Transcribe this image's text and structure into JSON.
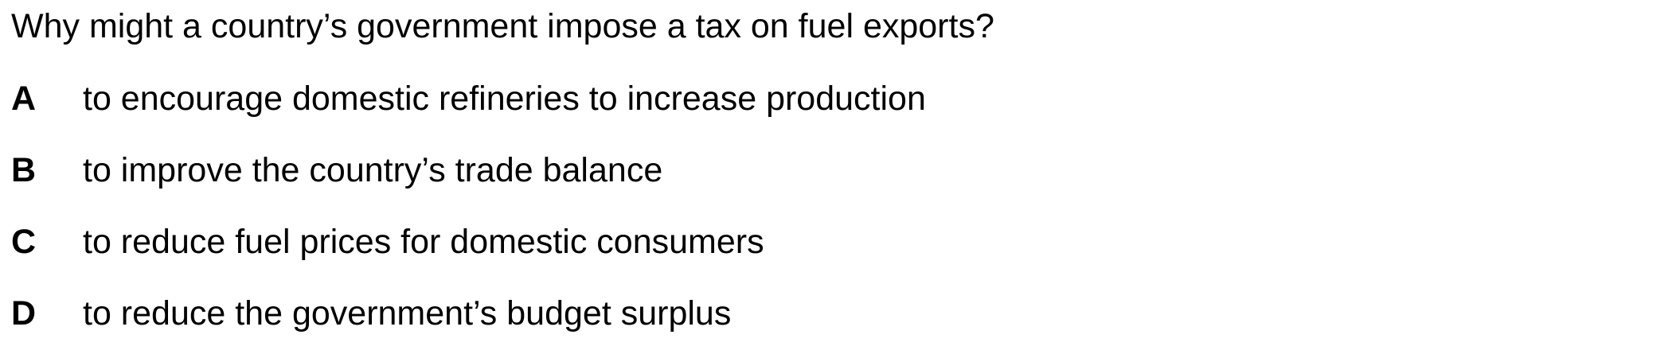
{
  "question": {
    "text": "Why might a country’s government impose a tax on fuel exports?"
  },
  "options": [
    {
      "letter": "A",
      "text": "to encourage domestic refineries to increase production"
    },
    {
      "letter": "B",
      "text": "to improve the country’s trade balance"
    },
    {
      "letter": "C",
      "text": "to reduce fuel prices for domestic consumers"
    },
    {
      "letter": "D",
      "text": "to reduce the government’s budget surplus"
    }
  ]
}
